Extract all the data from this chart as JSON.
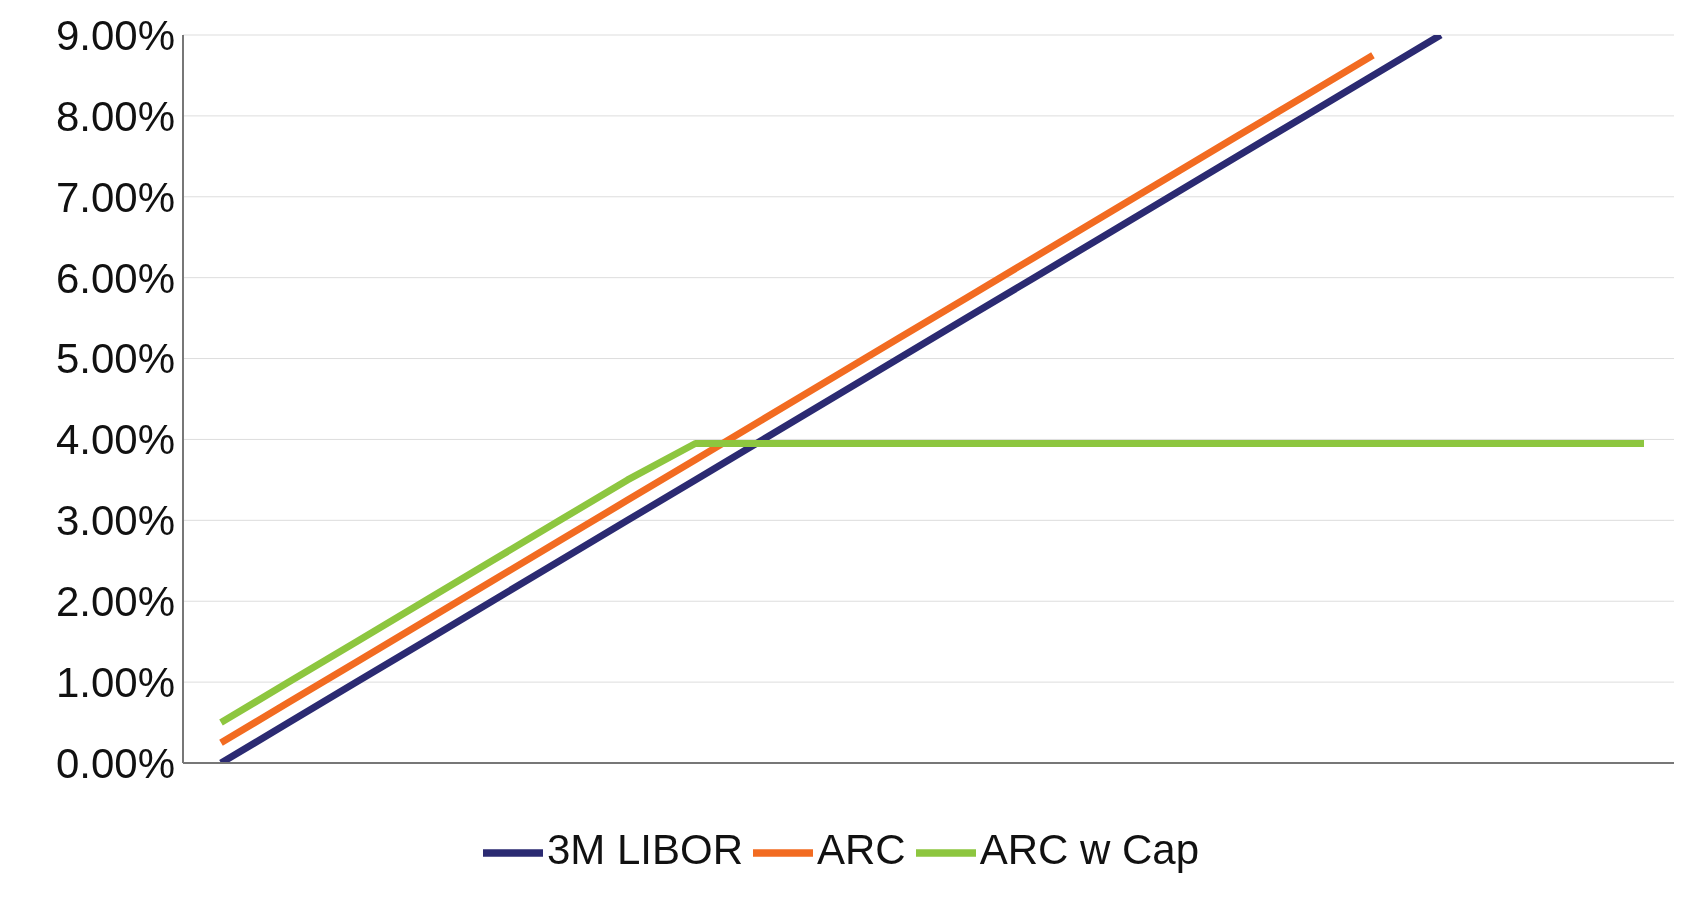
{
  "chart_data": {
    "type": "line",
    "categories": [
      null,
      null,
      null,
      null,
      null,
      null,
      null,
      null,
      null,
      null,
      null,
      null,
      null,
      null,
      null,
      null,
      null,
      null,
      null,
      null,
      null,
      null
    ],
    "series": [
      {
        "name": "3M LIBOR",
        "color": "#2b2a72",
        "values": [
          0,
          0.5,
          1.0,
          1.5,
          2.0,
          2.5,
          3.0,
          3.5,
          4.0,
          4.5,
          5.0,
          5.5,
          6.0,
          6.5,
          7.0,
          7.5,
          8.0,
          8.5,
          9.0,
          null,
          null,
          null
        ]
      },
      {
        "name": "ARC",
        "color": "#f26b21",
        "values": [
          0.25,
          0.75,
          1.25,
          1.75,
          2.25,
          2.75,
          3.25,
          3.75,
          4.25,
          4.75,
          5.25,
          5.75,
          6.25,
          6.75,
          7.25,
          7.75,
          8.25,
          8.75,
          null,
          null,
          null,
          null
        ]
      },
      {
        "name": "ARC w Cap",
        "color": "#8dc63f",
        "values": [
          0.5,
          1.0,
          1.5,
          2.0,
          2.5,
          3.0,
          3.5,
          3.95,
          3.95,
          3.95,
          3.95,
          3.95,
          3.95,
          3.95,
          3.95,
          3.95,
          3.95,
          3.95,
          3.95,
          3.95,
          3.95,
          3.95
        ]
      }
    ],
    "ylim": [
      0,
      9
    ],
    "yticks": [
      {
        "value": 0,
        "label": "0.00%"
      },
      {
        "value": 1,
        "label": "1.00%"
      },
      {
        "value": 2,
        "label": "2.00%"
      },
      {
        "value": 3,
        "label": "3.00%"
      },
      {
        "value": 4,
        "label": "4.00%"
      },
      {
        "value": 5,
        "label": "5.00%"
      },
      {
        "value": 6,
        "label": "6.00%"
      },
      {
        "value": 7,
        "label": "7.00%"
      },
      {
        "value": 8,
        "label": "8.00%"
      },
      {
        "value": 9,
        "label": "9.00%"
      }
    ],
    "grid": "y",
    "legend": "bottom",
    "tick_labels": "y",
    "marker": "none",
    "line_style": "solid"
  }
}
